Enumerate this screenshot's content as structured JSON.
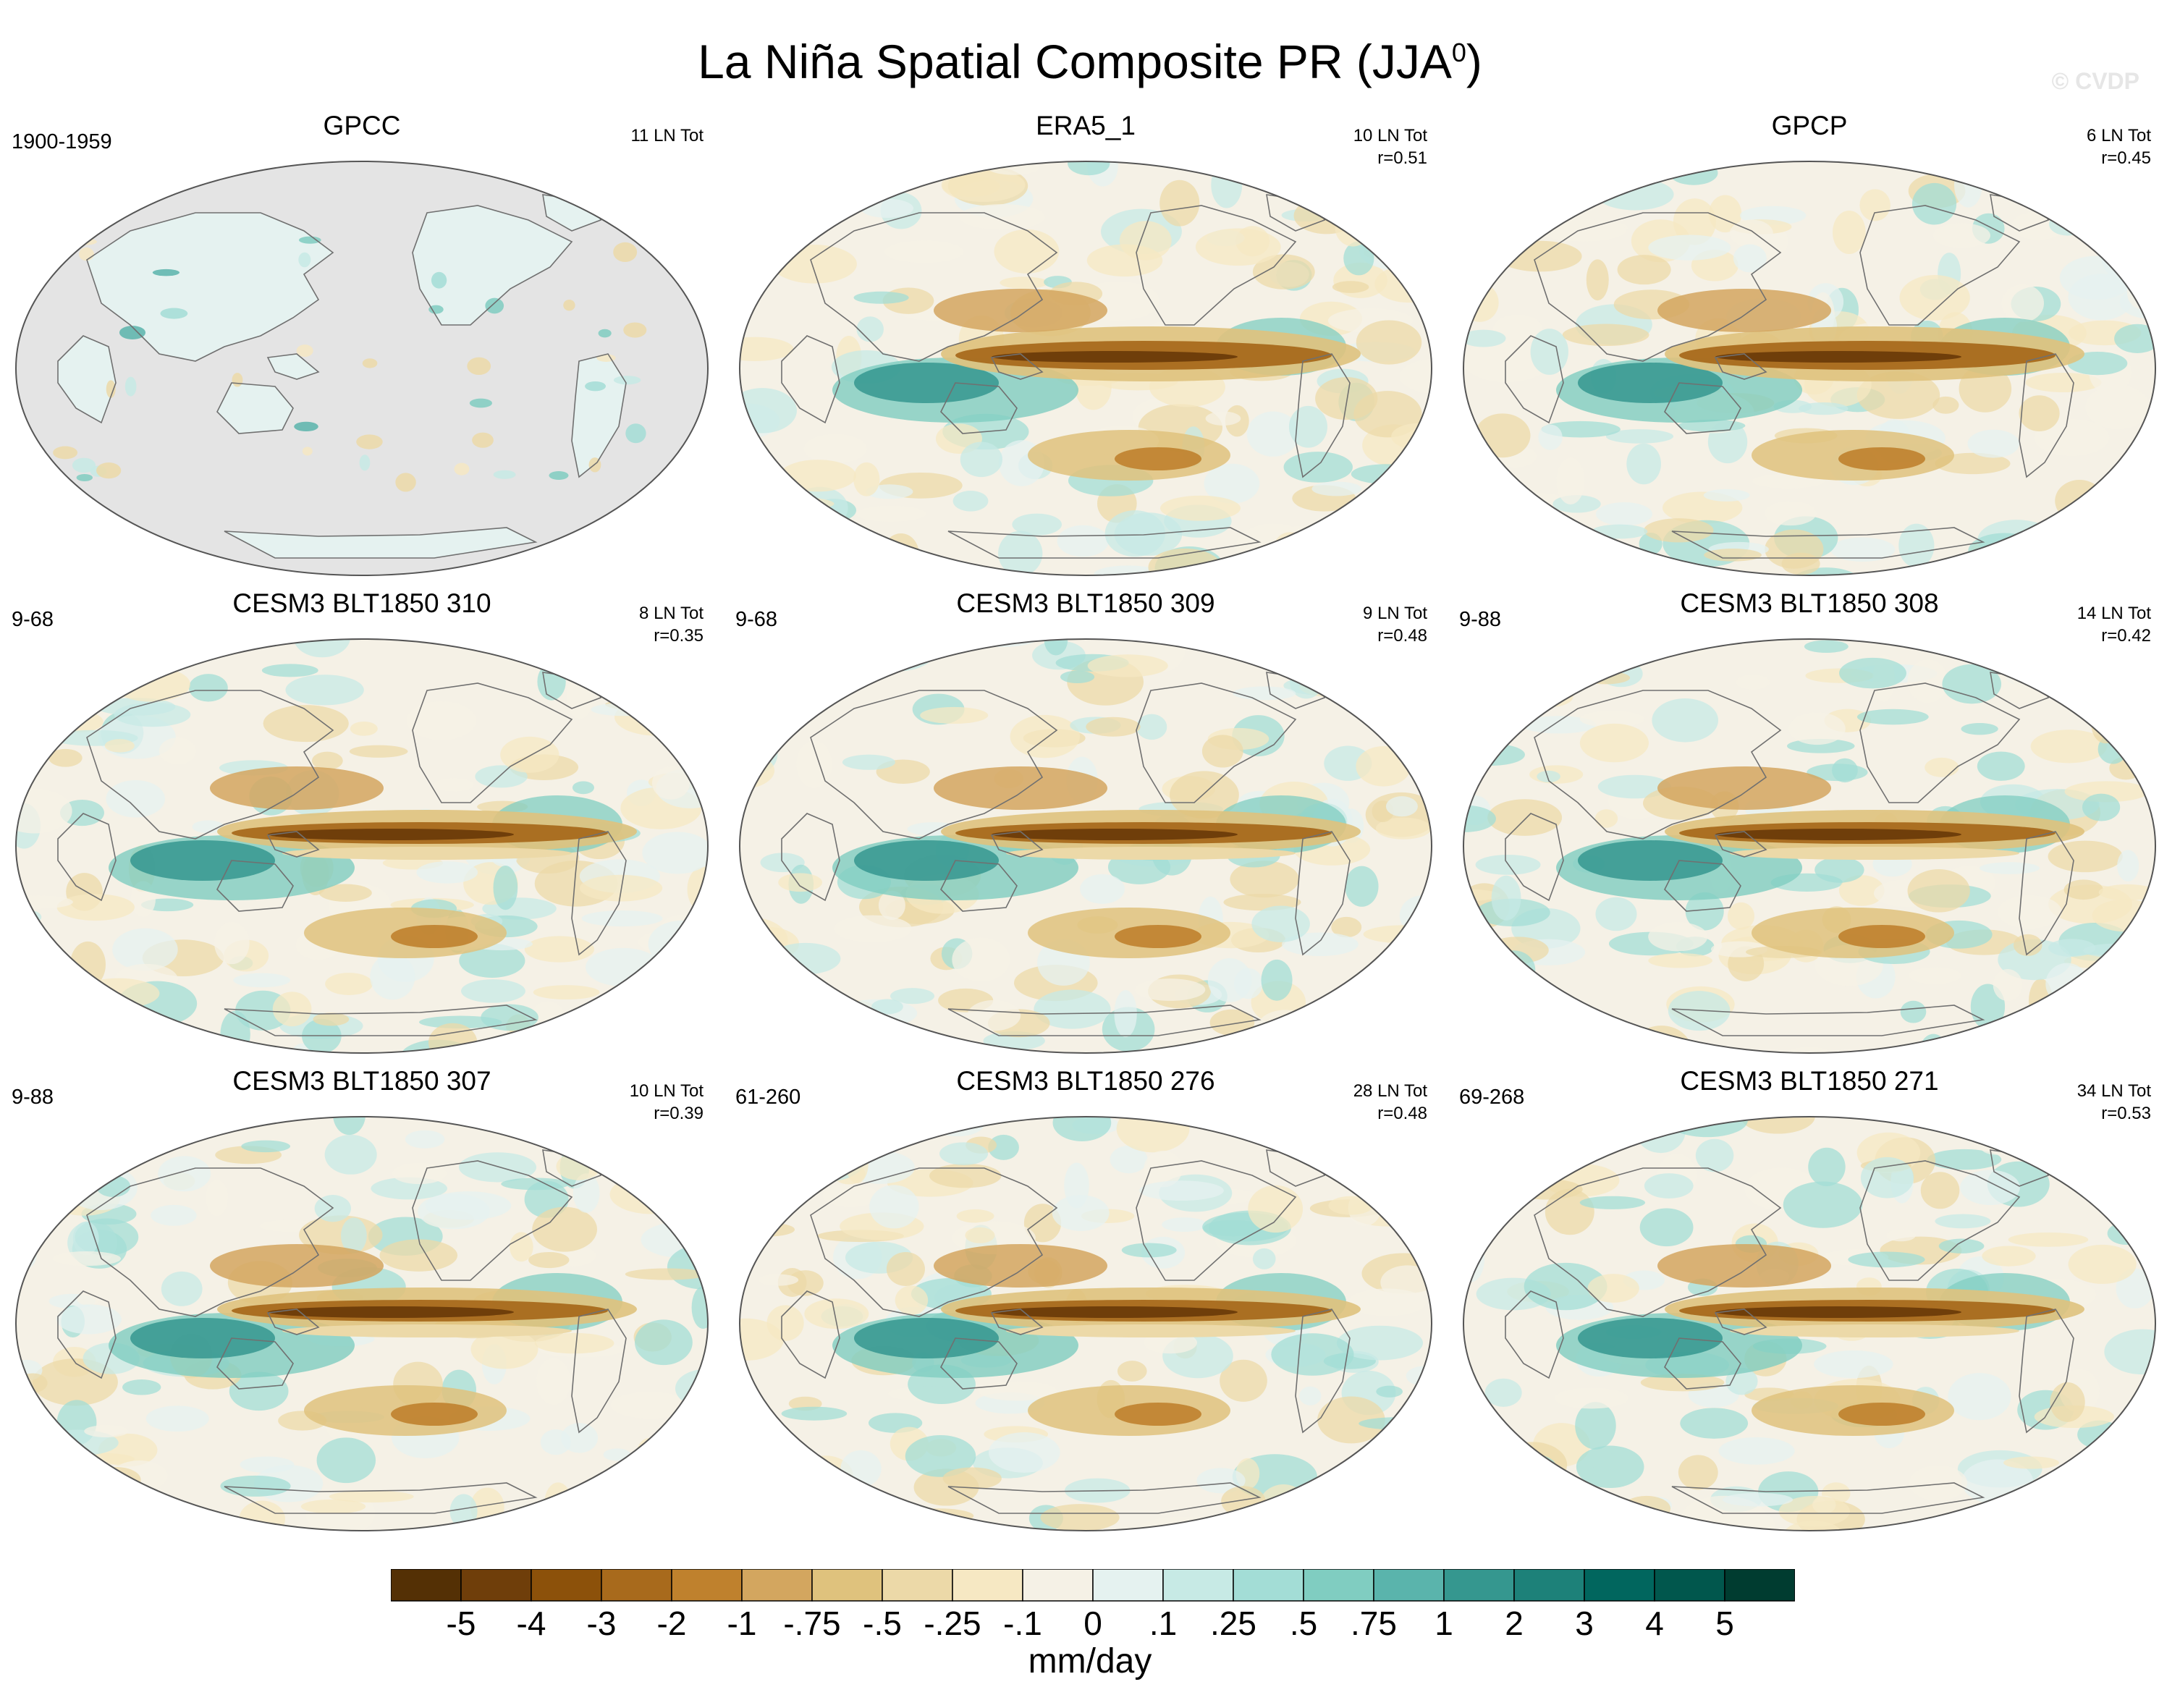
{
  "figure": {
    "title_main": "La Niña Spatial Composite PR (JJA",
    "title_sup": "0",
    "title_end": ")",
    "watermark": "© CVDP"
  },
  "panels": [
    {
      "title": "GPCC",
      "period": "1900-1959",
      "count": "11 LN Tot",
      "corr": "",
      "kind": "land"
    },
    {
      "title": "ERA5_1",
      "period": "",
      "count": "10 LN Tot",
      "corr": "r=0.51",
      "kind": "obs"
    },
    {
      "title": "GPCP",
      "period": "",
      "count": "6 LN Tot",
      "corr": "r=0.45",
      "kind": "obs"
    },
    {
      "title": "CESM3 BLT1850 310",
      "period": "9-68",
      "count": "8 LN Tot",
      "corr": "r=0.35",
      "kind": "model"
    },
    {
      "title": "CESM3 BLT1850 309",
      "period": "9-68",
      "count": "9 LN Tot",
      "corr": "r=0.48",
      "kind": "model"
    },
    {
      "title": "CESM3 BLT1850 308",
      "period": "9-88",
      "count": "14 LN Tot",
      "corr": "r=0.42",
      "kind": "model"
    },
    {
      "title": "CESM3 BLT1850 307",
      "period": "9-88",
      "count": "10 LN Tot",
      "corr": "r=0.39",
      "kind": "model"
    },
    {
      "title": "CESM3 BLT1850 276",
      "period": "61-260",
      "count": "28 LN Tot",
      "corr": "r=0.48",
      "kind": "model"
    },
    {
      "title": "CESM3 BLT1850 271",
      "period": "69-268",
      "count": "34 LN Tot",
      "corr": "r=0.53",
      "kind": "model"
    }
  ],
  "colorbar": {
    "units": "mm/day",
    "colors": [
      "#543005",
      "#6f3e0a",
      "#8c510a",
      "#a86a1c",
      "#bf812d",
      "#d3a65f",
      "#dfc27d",
      "#ecd9a8",
      "#f6e8c3",
      "#f5f1e6",
      "#e5f2f0",
      "#c7eae5",
      "#a3ddd6",
      "#80cdc1",
      "#5ab4ac",
      "#35978f",
      "#1d8179",
      "#01665e",
      "#01574d",
      "#003c30"
    ],
    "labels": [
      "-5",
      "-4",
      "-3",
      "-2",
      "-1",
      "-.75",
      "-.5",
      "-.25",
      "-.1",
      "0",
      ".1",
      ".25",
      ".5",
      ".75",
      "1",
      "2",
      "3",
      "4",
      "5"
    ]
  }
}
